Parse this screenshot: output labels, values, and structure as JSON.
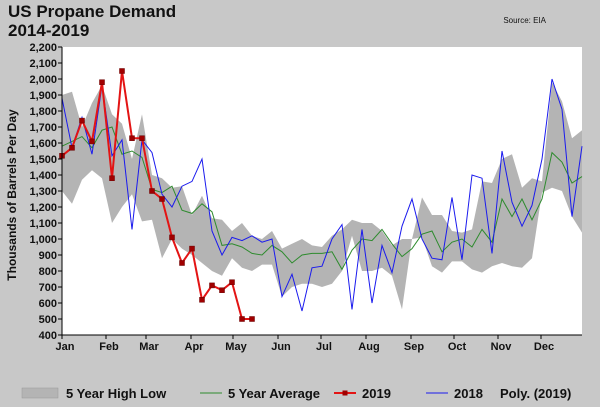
{
  "chart_data": {
    "type": "line",
    "title": "US Propane Demand",
    "subtitle": "2014-2019",
    "source": "Source: EIA",
    "ylabel": "Thousands of Barrels Per Day",
    "xlabel": "",
    "ylim": [
      400,
      2200
    ],
    "y_ticks": [
      "400",
      "500",
      "600",
      "700",
      "800",
      "900",
      "1,000",
      "1,100",
      "1,200",
      "1,300",
      "1,400",
      "1,500",
      "1,600",
      "1,700",
      "1,800",
      "1,900",
      "2,000",
      "2,100",
      "2,200"
    ],
    "y_tick_values": [
      400,
      500,
      600,
      700,
      800,
      900,
      1000,
      1100,
      1200,
      1300,
      1400,
      1500,
      1600,
      1700,
      1800,
      1900,
      2000,
      2100,
      2200
    ],
    "x_range": [
      1,
      53
    ],
    "x_ticks": [
      {
        "label": "Jan",
        "week": 1
      },
      {
        "label": "Feb",
        "week": 5.4
      },
      {
        "label": "Mar",
        "week": 9.4
      },
      {
        "label": "Apr",
        "week": 13.9
      },
      {
        "label": "May",
        "week": 18.1
      },
      {
        "label": "Jun",
        "week": 22.6
      },
      {
        "label": "Jul",
        "week": 26.9
      },
      {
        "label": "Aug",
        "week": 31.4
      },
      {
        "label": "Sep",
        "week": 35.9
      },
      {
        "label": "Oct",
        "week": 40.2
      },
      {
        "label": "Nov",
        "week": 44.6
      },
      {
        "label": "Dec",
        "week": 48.9
      }
    ],
    "grid": false,
    "legend_position": "bottom",
    "band": {
      "name": "5 Year High Low",
      "color": "#b4b4b4",
      "high": [
        1900,
        1920,
        1700,
        1850,
        1960,
        1780,
        1720,
        1500,
        1780,
        1400,
        1380,
        1320,
        1330,
        1150,
        1270,
        1130,
        1120,
        1050,
        1100,
        1020,
        1000,
        1050,
        940,
        970,
        1000,
        960,
        950,
        1020,
        1060,
        1120,
        1100,
        1100,
        1050,
        960,
        1000,
        1000,
        1260,
        1150,
        1150,
        1050,
        1040,
        1060,
        1360,
        1350,
        1500,
        1530,
        1320,
        1380,
        1360,
        1980,
        1860,
        1630,
        1680
      ],
      "low": [
        1300,
        1220,
        1370,
        1430,
        1380,
        1100,
        1200,
        1280,
        1110,
        1120,
        880,
        1000,
        940,
        900,
        850,
        800,
        770,
        880,
        820,
        800,
        840,
        840,
        640,
        700,
        720,
        720,
        700,
        720,
        800,
        1020,
        800,
        800,
        820,
        770,
        560,
        1000,
        1010,
        830,
        790,
        860,
        860,
        810,
        790,
        830,
        850,
        830,
        820,
        880,
        1290,
        1320,
        1300,
        1140,
        1040
      ]
    },
    "series": [
      {
        "name": "5 Year Average",
        "color": "#2e8b2e",
        "values": [
          1580,
          1610,
          1640,
          1570,
          1680,
          1700,
          1530,
          1550,
          1510,
          1310,
          1290,
          1330,
          1180,
          1160,
          1220,
          1170,
          960,
          970,
          950,
          910,
          900,
          960,
          920,
          850,
          900,
          910,
          910,
          920,
          810,
          930,
          1000,
          990,
          1060,
          970,
          890,
          940,
          1030,
          1050,
          920,
          980,
          1000,
          950,
          1060,
          980,
          1250,
          1140,
          1250,
          1120,
          1250,
          1540,
          1480,
          1350,
          1390
        ]
      },
      {
        "name": "2018",
        "color": "#1a1aee",
        "values": [
          1880,
          1570,
          1760,
          1530,
          1960,
          1520,
          1620,
          1060,
          1620,
          1540,
          1280,
          1200,
          1330,
          1360,
          1500,
          1050,
          900,
          1010,
          990,
          1020,
          980,
          1000,
          640,
          780,
          550,
          820,
          830,
          1000,
          1090,
          560,
          1060,
          600,
          960,
          790,
          1080,
          1250,
          1000,
          880,
          870,
          1260,
          870,
          1400,
          1380,
          910,
          1550,
          1230,
          1080,
          1210,
          1500,
          2000,
          1810,
          1140,
          1580
        ]
      },
      {
        "name": "2019",
        "color": "#e31414",
        "marker_color": "#a00000",
        "values": [
          1520,
          1570,
          1740,
          1610,
          1980,
          1380,
          2050,
          1630,
          1630,
          1300,
          1250,
          1010,
          850,
          940,
          620,
          710,
          680,
          730,
          500,
          500
        ]
      }
    ],
    "legend": [
      {
        "label": "5 Year High Low",
        "kind": "band"
      },
      {
        "label": "5 Year Average",
        "kind": "line"
      },
      {
        "label": "2019",
        "kind": "marker-line"
      },
      {
        "label": "2018",
        "kind": "line"
      },
      {
        "label": "Poly. (2019)",
        "kind": "none"
      }
    ]
  }
}
